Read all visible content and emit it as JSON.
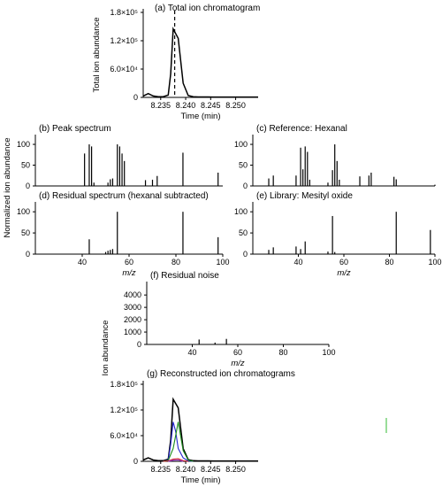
{
  "chart_data": [
    {
      "id": "a",
      "type": "line",
      "title": "(a) Total ion chromatogram",
      "xlabel": "Time (min)",
      "ylabel": "Total ion abundance",
      "xlim": [
        8.2315,
        8.2545
      ],
      "ylim": [
        0,
        180000
      ],
      "xticks": [
        {
          "v": 8.235,
          "label": "8.235"
        },
        {
          "v": 8.24,
          "label": "8.240"
        },
        {
          "v": 8.245,
          "label": "8.245"
        },
        {
          "v": 8.25,
          "label": "8.250"
        }
      ],
      "yticks": [
        {
          "v": 0,
          "label": "0"
        },
        {
          "v": 60000,
          "label": "6.0×10⁴"
        },
        {
          "v": 120000,
          "label": "1.2×10⁵"
        },
        {
          "v": 180000,
          "label": "1.8×10⁵"
        }
      ],
      "apex_marker": 8.2378,
      "series": [
        {
          "color": "#000000",
          "x": [
            8.2315,
            8.2325,
            8.2335,
            8.2345,
            8.2355,
            8.2365,
            8.237,
            8.2375,
            8.2385,
            8.2395,
            8.2405,
            8.2415,
            8.2425,
            8.2435,
            8.2445,
            8.2455,
            8.2465,
            8.2475,
            8.2485,
            8.2495,
            8.2505,
            8.2515,
            8.2525,
            8.2545
          ],
          "y": [
            3000,
            8000,
            3000,
            1500,
            1500,
            5000,
            50000,
            145000,
            125000,
            30000,
            4000,
            1500,
            1000,
            1000,
            1000,
            800,
            800,
            800,
            800,
            800,
            800,
            800,
            800,
            800
          ]
        }
      ]
    },
    {
      "id": "b",
      "type": "bar",
      "title": "(b) Peak spectrum",
      "xlim": [
        20,
        100
      ],
      "ylim": [
        0,
        115
      ],
      "xticks": [],
      "yticks": [
        {
          "v": 0,
          "label": "0"
        },
        {
          "v": 50,
          "label": "50"
        },
        {
          "v": 100,
          "label": "100"
        }
      ],
      "peaks": [
        [
          41,
          78
        ],
        [
          43,
          100
        ],
        [
          44,
          95
        ],
        [
          45,
          8
        ],
        [
          51,
          8
        ],
        [
          52,
          16
        ],
        [
          53,
          18
        ],
        [
          55,
          100
        ],
        [
          56,
          95
        ],
        [
          57,
          78
        ],
        [
          58,
          60
        ],
        [
          67,
          14
        ],
        [
          70,
          15
        ],
        [
          72,
          24
        ],
        [
          83,
          80
        ],
        [
          98,
          32
        ]
      ]
    },
    {
      "id": "c",
      "type": "bar",
      "title": "(c) Reference: Hexanal",
      "xlim": [
        20,
        100
      ],
      "ylim": [
        0,
        115
      ],
      "xticks": [],
      "yticks": [
        {
          "v": 0,
          "label": "0"
        },
        {
          "v": 50,
          "label": "50"
        },
        {
          "v": 100,
          "label": "100"
        }
      ],
      "peaks": [
        [
          27,
          18
        ],
        [
          29,
          25
        ],
        [
          39,
          25
        ],
        [
          41,
          92
        ],
        [
          42,
          40
        ],
        [
          43,
          95
        ],
        [
          44,
          82
        ],
        [
          45,
          15
        ],
        [
          53,
          8
        ],
        [
          55,
          38
        ],
        [
          56,
          100
        ],
        [
          57,
          60
        ],
        [
          58,
          15
        ],
        [
          67,
          23
        ],
        [
          71,
          25
        ],
        [
          72,
          32
        ],
        [
          82,
          22
        ],
        [
          83,
          16
        ],
        [
          100,
          3
        ]
      ]
    },
    {
      "id": "d",
      "type": "bar",
      "title": "(d) Residual spectrum (hexanal subtracted)",
      "xlabel": "m/z",
      "xlim": [
        20,
        100
      ],
      "ylim": [
        0,
        115
      ],
      "xticks": [
        {
          "v": 40,
          "label": "40"
        },
        {
          "v": 60,
          "label": "60"
        },
        {
          "v": 80,
          "label": "80"
        },
        {
          "v": 100,
          "label": "100"
        }
      ],
      "yticks": [
        {
          "v": 0,
          "label": "0"
        },
        {
          "v": 50,
          "label": "50"
        },
        {
          "v": 100,
          "label": "100"
        }
      ],
      "peaks": [
        [
          43,
          35
        ],
        [
          50,
          5
        ],
        [
          51,
          8
        ],
        [
          52,
          10
        ],
        [
          53,
          12
        ],
        [
          55,
          100
        ],
        [
          83,
          100
        ],
        [
          98,
          40
        ]
      ]
    },
    {
      "id": "e",
      "type": "bar",
      "title": "(e) Library: Mesityl oxide",
      "xlabel": "m/z",
      "xlim": [
        20,
        100
      ],
      "ylim": [
        0,
        115
      ],
      "xticks": [
        {
          "v": 40,
          "label": "40"
        },
        {
          "v": 60,
          "label": "60"
        },
        {
          "v": 80,
          "label": "80"
        },
        {
          "v": 100,
          "label": "100"
        }
      ],
      "yticks": [
        {
          "v": 0,
          "label": "0"
        },
        {
          "v": 50,
          "label": "50"
        },
        {
          "v": 100,
          "label": "100"
        }
      ],
      "peaks": [
        [
          27,
          10
        ],
        [
          29,
          16
        ],
        [
          39,
          18
        ],
        [
          41,
          12
        ],
        [
          43,
          30
        ],
        [
          53,
          6
        ],
        [
          55,
          90
        ],
        [
          56,
          5
        ],
        [
          83,
          100
        ],
        [
          98,
          57
        ]
      ]
    },
    {
      "id": "f",
      "type": "bar",
      "title": "(f) Residual noise",
      "xlabel": "m/z",
      "xlim": [
        20,
        100
      ],
      "ylim": [
        0,
        4800
      ],
      "xticks": [
        {
          "v": 40,
          "label": "40"
        },
        {
          "v": 60,
          "label": "60"
        },
        {
          "v": 80,
          "label": "80"
        },
        {
          "v": 100,
          "label": "100"
        }
      ],
      "yticks": [
        {
          "v": 0,
          "label": "0"
        },
        {
          "v": 1000,
          "label": "1000"
        },
        {
          "v": 2000,
          "label": "2000"
        },
        {
          "v": 3000,
          "label": "3000"
        },
        {
          "v": 4000,
          "label": "4000"
        }
      ],
      "peaks": [
        [
          43,
          400
        ],
        [
          50,
          150
        ],
        [
          55,
          450
        ]
      ]
    },
    {
      "id": "g",
      "type": "line",
      "title": "(g) Reconstructed ion chromatograms",
      "xlabel": "Time (min)",
      "xlim": [
        8.2315,
        8.2545
      ],
      "ylim": [
        0,
        180000
      ],
      "xticks": [
        {
          "v": 8.235,
          "label": "8.235"
        },
        {
          "v": 8.24,
          "label": "8.240"
        },
        {
          "v": 8.245,
          "label": "8.245"
        },
        {
          "v": 8.25,
          "label": "8.250"
        }
      ],
      "yticks": [
        {
          "v": 0,
          "label": "0"
        },
        {
          "v": 60000,
          "label": "6.0×10⁴"
        },
        {
          "v": 120000,
          "label": "1.2×10⁵"
        },
        {
          "v": 180000,
          "label": "1.8×10⁵"
        }
      ],
      "series": [
        {
          "color": "#000000",
          "x": [
            8.2315,
            8.2325,
            8.2335,
            8.2345,
            8.2355,
            8.2365,
            8.237,
            8.2375,
            8.2385,
            8.2395,
            8.2405,
            8.2415,
            8.2425,
            8.2435,
            8.2445,
            8.2455,
            8.2465,
            8.2475,
            8.2485,
            8.2495,
            8.2505,
            8.2515,
            8.2525,
            8.2545
          ],
          "y": [
            3000,
            8000,
            3000,
            1500,
            1500,
            5000,
            50000,
            145000,
            125000,
            30000,
            4000,
            1500,
            1000,
            1000,
            1000,
            800,
            800,
            800,
            800,
            800,
            800,
            800,
            800,
            800
          ]
        },
        {
          "color": "#2222cc",
          "x": [
            8.2355,
            8.2365,
            8.237,
            8.2375,
            8.238,
            8.2385,
            8.2395,
            8.2405,
            8.2415
          ],
          "y": [
            0,
            3000,
            40000,
            92000,
            70000,
            30000,
            8000,
            1000,
            0
          ]
        },
        {
          "color": "#1a8a1a",
          "x": [
            8.2355,
            8.2365,
            8.2375,
            8.238,
            8.2385,
            8.2395,
            8.2405,
            8.2415
          ],
          "y": [
            0,
            2000,
            30000,
            60000,
            92000,
            25000,
            3000,
            0
          ]
        },
        {
          "color": "#cc2222",
          "x": [
            8.2355,
            8.2365,
            8.2375,
            8.2385,
            8.2395,
            8.2405
          ],
          "y": [
            0,
            1000,
            5000,
            6000,
            1500,
            0
          ]
        },
        {
          "color": "#9933cc",
          "x": [
            8.2365,
            8.2375,
            8.2385,
            8.2395
          ],
          "y": [
            0,
            2500,
            3000,
            0
          ]
        }
      ]
    }
  ],
  "shared_labels": {
    "normalized_ylabel": "Normalized ion abundance",
    "ion_ylabel": "Ion abundance"
  }
}
